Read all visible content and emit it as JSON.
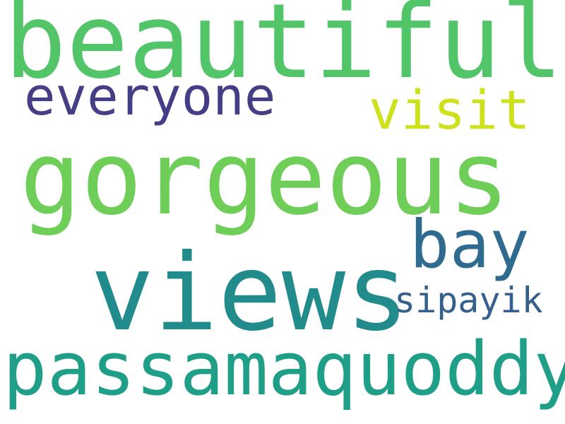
{
  "word_cloud": {
    "words": [
      {
        "text": "beautiful",
        "color": "#52c569"
      },
      {
        "text": "gorgeous",
        "color": "#6ece58"
      },
      {
        "text": "views",
        "color": "#228c8d"
      },
      {
        "text": "passamaquoddy",
        "color": "#1f9f88"
      },
      {
        "text": "bay",
        "color": "#2f6b8e"
      },
      {
        "text": "everyone",
        "color": "#433e85"
      },
      {
        "text": "visit",
        "color": "#cde11d"
      },
      {
        "text": "sipayik",
        "color": "#355f8d"
      }
    ]
  }
}
